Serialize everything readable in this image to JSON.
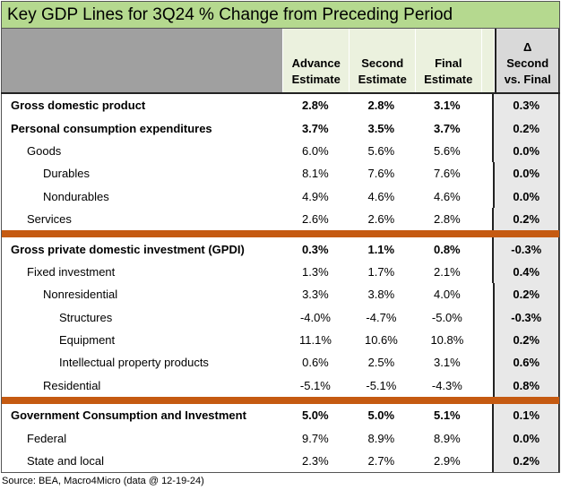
{
  "title": "Key GDP Lines for 3Q24 % Change from Preceding Period",
  "headers": {
    "col1": "Advance Estimate",
    "col2": "Second Estimate",
    "col3": "Final Estimate",
    "delta_symbol": "Δ",
    "delta": "Second vs. Final"
  },
  "groups": [
    {
      "rows": [
        {
          "name": "Gross domestic product",
          "level": 0,
          "bold": true,
          "a": "2.8%",
          "s": "2.8%",
          "f": "3.1%",
          "d": "0.3%"
        },
        {
          "name": "Personal consumption expenditures",
          "level": 0,
          "bold": true,
          "a": "3.7%",
          "s": "3.5%",
          "f": "3.7%",
          "d": "0.2%"
        },
        {
          "name": "Goods",
          "level": 1,
          "bold": false,
          "a": "6.0%",
          "s": "5.6%",
          "f": "5.6%",
          "d": "0.0%"
        },
        {
          "name": "Durables",
          "level": 2,
          "bold": false,
          "a": "8.1%",
          "s": "7.6%",
          "f": "7.6%",
          "d": "0.0%"
        },
        {
          "name": "Nondurables",
          "level": 2,
          "bold": false,
          "a": "4.9%",
          "s": "4.6%",
          "f": "4.6%",
          "d": "0.0%"
        },
        {
          "name": "Services",
          "level": 1,
          "bold": false,
          "a": "2.6%",
          "s": "2.6%",
          "f": "2.8%",
          "d": "0.2%"
        }
      ]
    },
    {
      "rows": [
        {
          "name": "Gross private domestic investment (GPDI)",
          "level": 0,
          "bold": true,
          "a": "0.3%",
          "s": "1.1%",
          "f": "0.8%",
          "d": "-0.3%"
        },
        {
          "name": "Fixed investment",
          "level": 1,
          "bold": false,
          "a": "1.3%",
          "s": "1.7%",
          "f": "2.1%",
          "d": "0.4%"
        },
        {
          "name": "Nonresidential",
          "level": 2,
          "bold": false,
          "a": "3.3%",
          "s": "3.8%",
          "f": "4.0%",
          "d": "0.2%"
        },
        {
          "name": "Structures",
          "level": 3,
          "bold": false,
          "a": "-4.0%",
          "s": "-4.7%",
          "f": "-5.0%",
          "d": "-0.3%"
        },
        {
          "name": "Equipment",
          "level": 3,
          "bold": false,
          "a": "11.1%",
          "s": "10.6%",
          "f": "10.8%",
          "d": "0.2%"
        },
        {
          "name": "Intellectual property products",
          "level": 3,
          "bold": false,
          "a": "0.6%",
          "s": "2.5%",
          "f": "3.1%",
          "d": "0.6%"
        },
        {
          "name": "Residential",
          "level": 2,
          "bold": false,
          "a": "-5.1%",
          "s": "-5.1%",
          "f": "-4.3%",
          "d": "0.8%"
        }
      ]
    },
    {
      "rows": [
        {
          "name": "Government Consumption and Investment",
          "level": 0,
          "bold": true,
          "a": "5.0%",
          "s": "5.0%",
          "f": "5.1%",
          "d": "0.1%"
        },
        {
          "name": "Federal",
          "level": 1,
          "bold": false,
          "a": "9.7%",
          "s": "8.9%",
          "f": "8.9%",
          "d": "0.0%"
        },
        {
          "name": "State and local",
          "level": 1,
          "bold": false,
          "a": "2.3%",
          "s": "2.7%",
          "f": "2.9%",
          "d": "0.2%"
        }
      ]
    }
  ],
  "source": "Source: BEA, Macro4Micro (data @ 12-19-24)",
  "colors": {
    "title_bg": "#b5d98f",
    "header_bg": "#ebf1de",
    "label_header_bg": "#a0a0a0",
    "separator": "#c55a11",
    "delta_bg": "#e8e8e8"
  }
}
